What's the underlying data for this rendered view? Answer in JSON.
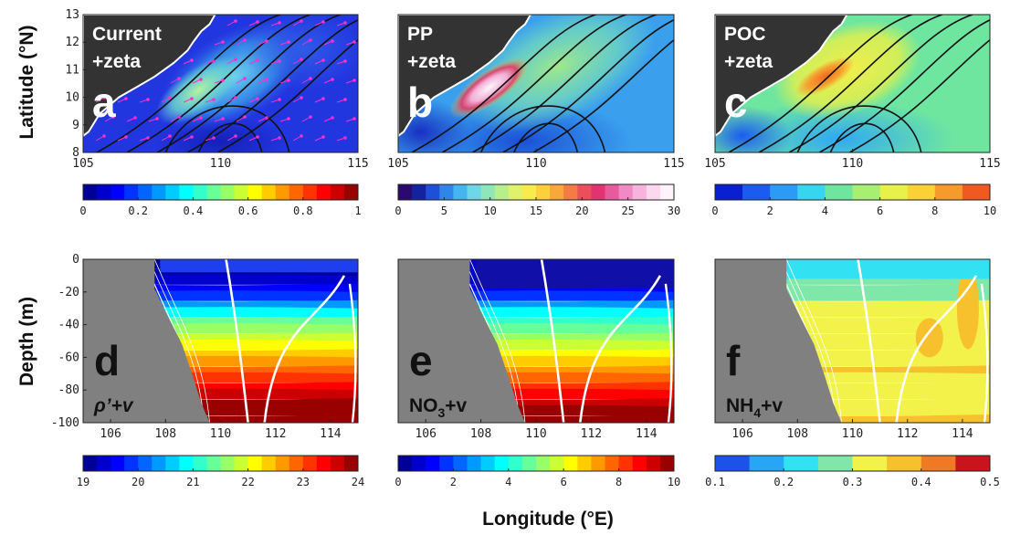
{
  "figure": {
    "y_label_top": "Latitude (°N)",
    "y_label_bottom": "Depth (m)",
    "x_label": "Longitude (°E)"
  },
  "colors": {
    "land": "#333333",
    "section_land": "#808080",
    "contour": "#111111",
    "contour_white": "#ffffff",
    "arrows": "#ff2fd0"
  },
  "chart_data": [
    {
      "panel": "a",
      "type": "heatmap",
      "label_line1": "Current",
      "label_line2": "+zeta",
      "xlim": [
        105,
        115
      ],
      "ylim": [
        8,
        13
      ],
      "x_ticks": [
        "105",
        "110",
        "115"
      ],
      "y_ticks": [
        "8",
        "9",
        "10",
        "11",
        "12",
        "13"
      ],
      "colorbar": {
        "min": 0,
        "max": 1,
        "levels": 20,
        "scheme": "jet",
        "ticks": [
          "0",
          "0.2",
          "0.4",
          "0.6",
          "0.8",
          "1"
        ]
      },
      "overlay": "black zeta contours + magenta current vectors"
    },
    {
      "panel": "b",
      "type": "heatmap",
      "label_line1": "PP",
      "label_line2": "+zeta",
      "xlim": [
        105,
        115
      ],
      "ylim": [
        8,
        13
      ],
      "x_ticks": [
        "105",
        "110",
        "115"
      ],
      "colorbar": {
        "min": 0,
        "max": 30,
        "levels": 20,
        "scheme": "jet-pink",
        "ticks": [
          "0",
          "5",
          "10",
          "15",
          "20",
          "25",
          "30"
        ]
      },
      "overlay": "black zeta contours"
    },
    {
      "panel": "c",
      "type": "heatmap",
      "label_line1": "POC",
      "label_line2": "+zeta",
      "xlim": [
        105,
        115
      ],
      "ylim": [
        8,
        13
      ],
      "x_ticks": [
        "105",
        "110",
        "115"
      ],
      "colorbar": {
        "min": 0,
        "max": 10,
        "levels": 10,
        "scheme": "jet-coarse",
        "ticks": [
          "0",
          "2",
          "4",
          "6",
          "8",
          "10"
        ]
      },
      "overlay": "black zeta contours"
    },
    {
      "panel": "d",
      "type": "heatmap",
      "label_main": "ρ’+v",
      "xlim": [
        105,
        115
      ],
      "ylim": [
        -100,
        0
      ],
      "x_ticks": [
        "106",
        "108",
        "110",
        "112",
        "114"
      ],
      "y_ticks": [
        "0",
        "-20",
        "-40",
        "-60",
        "-80",
        "-100"
      ],
      "colorbar": {
        "min": 19,
        "max": 24,
        "levels": 20,
        "scheme": "jet",
        "ticks": [
          "19",
          "20",
          "21",
          "22",
          "23",
          "24"
        ]
      },
      "overlay": "white velocity contours"
    },
    {
      "panel": "e",
      "type": "heatmap",
      "label_main": "NO",
      "label_sub": "3",
      "label_suffix": "+v",
      "xlim": [
        105,
        115
      ],
      "ylim": [
        -100,
        0
      ],
      "x_ticks": [
        "106",
        "108",
        "110",
        "112",
        "114"
      ],
      "colorbar": {
        "min": 0,
        "max": 10,
        "levels": 20,
        "scheme": "jet",
        "ticks": [
          "0",
          "2",
          "4",
          "6",
          "8",
          "10"
        ]
      },
      "overlay": "white velocity contours"
    },
    {
      "panel": "f",
      "type": "heatmap",
      "label_main": "NH",
      "label_sub": "4",
      "label_suffix": "+v",
      "xlim": [
        105,
        115
      ],
      "ylim": [
        -100,
        0
      ],
      "x_ticks": [
        "106",
        "108",
        "110",
        "112",
        "114"
      ],
      "colorbar": {
        "min": 0.1,
        "max": 0.5,
        "levels": 8,
        "scheme": "jet-coarse",
        "ticks": [
          "0.1",
          "0.2",
          "0.3",
          "0.4",
          "0.5"
        ]
      },
      "overlay": "white velocity contours"
    }
  ]
}
